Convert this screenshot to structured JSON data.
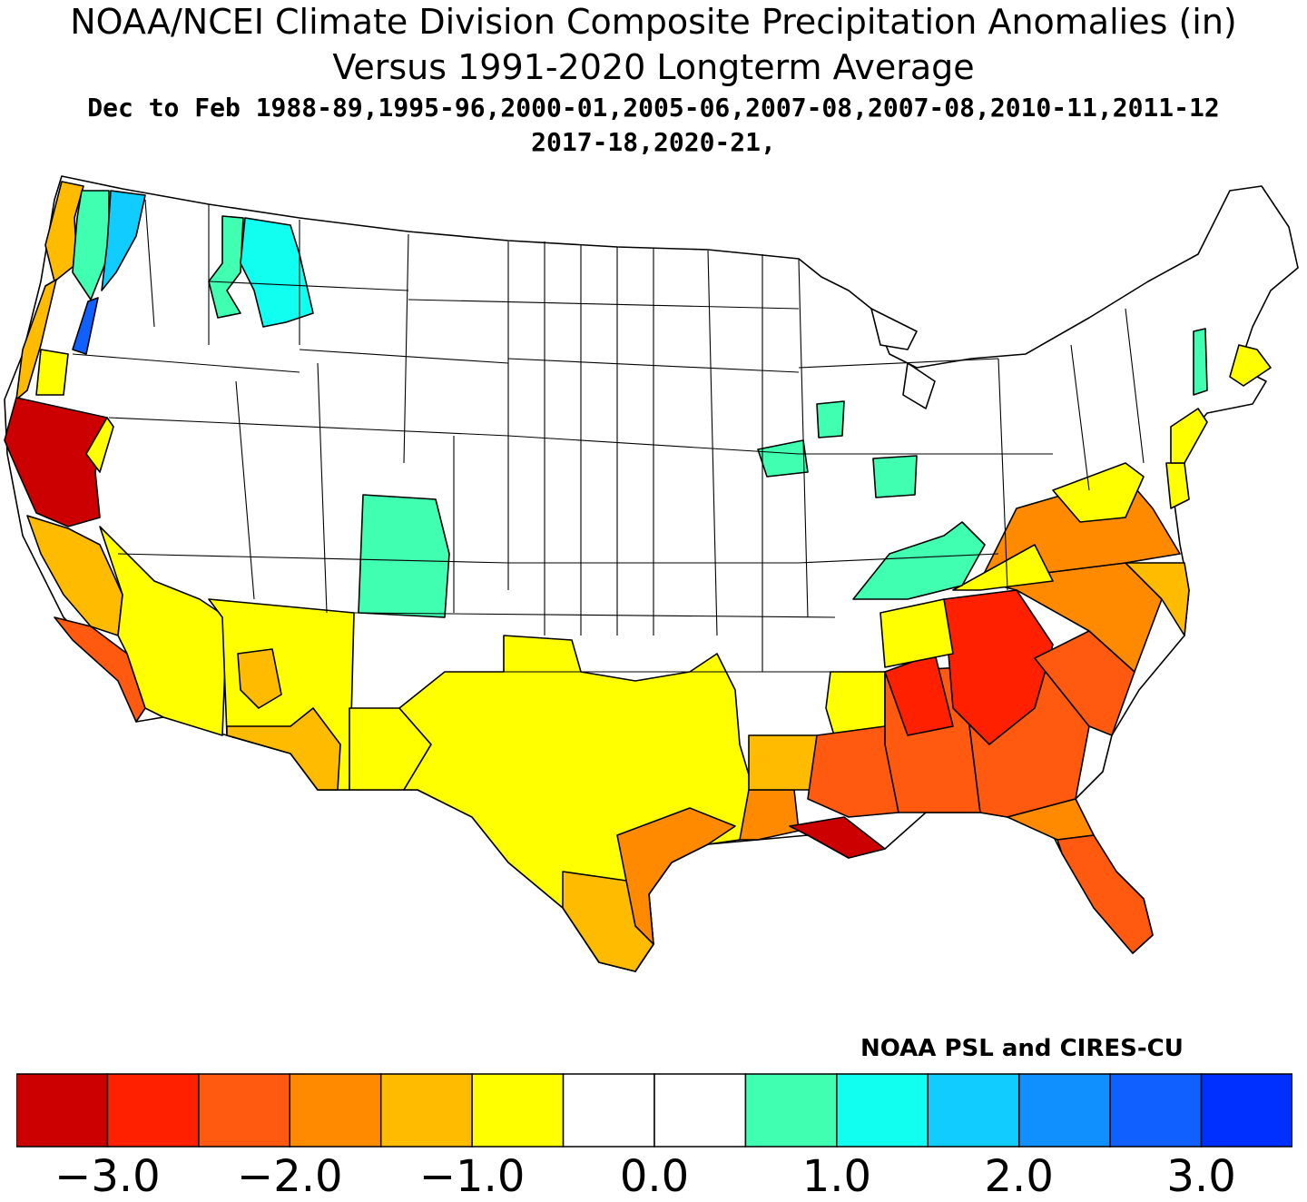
{
  "title": {
    "line1": "NOAA/NCEI Climate Division Composite Precipitation Anomalies (in)",
    "line2": "Versus 1991-2020 Longterm Average",
    "line3": "Dec to Feb  1988-89,1995-96,2000-01,2005-06,2007-08,2007-08,2010-11,2011-12",
    "line4": "2017-18,2020-21,"
  },
  "credit": "NOAA PSL and CIRES-CU",
  "legend": {
    "colors": [
      "#cc0000",
      "#ff2000",
      "#ff5a10",
      "#ff8a00",
      "#ffbb00",
      "#ffff00",
      "#ffffff",
      "#ffffff",
      "#40ffb0",
      "#10fff0",
      "#10ccff",
      "#1090ff",
      "#1060ff",
      "#0030ff"
    ],
    "ticks": [
      {
        "label": "−3.0",
        "value": -3.0
      },
      {
        "label": "−2.0",
        "value": -2.0
      },
      {
        "label": "−1.0",
        "value": -1.0
      },
      {
        "label": "0.0",
        "value": 0.0
      },
      {
        "label": "1.0",
        "value": 1.0
      },
      {
        "label": "2.0",
        "value": 2.0
      },
      {
        "label": "3.0",
        "value": 3.0
      }
    ],
    "min": -3.5,
    "max": 3.5
  },
  "map": {
    "base_color": "#ffffff",
    "border_color": "#000000",
    "regions": [
      {
        "name": "Northern California",
        "anomaly": -3.0,
        "color": "#cc0000"
      },
      {
        "name": "Southeast Louisiana",
        "anomaly": -3.0,
        "color": "#cc0000"
      },
      {
        "name": "Northern Georgia",
        "anomaly": -2.5,
        "color": "#ff2000"
      },
      {
        "name": "Alabama",
        "anomaly": -2.0,
        "color": "#ff5a10"
      },
      {
        "name": "Mississippi Coast",
        "anomaly": -2.0,
        "color": "#ff5a10"
      },
      {
        "name": "South Carolina",
        "anomaly": -2.0,
        "color": "#ff5a10"
      },
      {
        "name": "Florida Peninsula",
        "anomaly": -2.0,
        "color": "#ff5a10"
      },
      {
        "name": "Southern California Coast",
        "anomaly": -2.0,
        "color": "#ff5a10"
      },
      {
        "name": "Upper Texas Coast",
        "anomaly": -2.0,
        "color": "#ff5a10"
      },
      {
        "name": "Southwest Louisiana",
        "anomaly": -2.0,
        "color": "#ff5a10"
      },
      {
        "name": "Piedmont",
        "anomaly": -1.5,
        "color": "#ff8a00"
      },
      {
        "name": "Central California",
        "anomaly": -1.5,
        "color": "#ffbb00"
      },
      {
        "name": "Oregon Coast",
        "anomaly": -1.5,
        "color": "#ffbb00"
      },
      {
        "name": "Southern Arizona",
        "anomaly": -1.5,
        "color": "#ffbb00"
      },
      {
        "name": "South Texas",
        "anomaly": -1.5,
        "color": "#ffbb00"
      },
      {
        "name": "Northern Louisiana",
        "anomaly": -1.5,
        "color": "#ffbb00"
      },
      {
        "name": "North Carolina Coast",
        "anomaly": -1.5,
        "color": "#ffbb00"
      },
      {
        "name": "Texas",
        "anomaly": -1.0,
        "color": "#ffff00"
      },
      {
        "name": "Southwest",
        "anomaly": -1.0,
        "color": "#ffff00"
      },
      {
        "name": "Eastern Oklahoma",
        "anomaly": -1.0,
        "color": "#ffff00"
      },
      {
        "name": "Tennessee",
        "anomaly": -1.0,
        "color": "#ffff00"
      },
      {
        "name": "Mid-Atlantic",
        "anomaly": -1.0,
        "color": "#ffff00"
      },
      {
        "name": "New Jersey",
        "anomaly": -1.0,
        "color": "#ffff00"
      },
      {
        "name": "Massachusetts",
        "anomaly": -1.0,
        "color": "#ffff00"
      },
      {
        "name": "Southern Oregon",
        "anomaly": -1.0,
        "color": "#ffff00"
      },
      {
        "name": "Western Colorado",
        "anomaly": 0.7,
        "color": "#40ffb0"
      },
      {
        "name": "Kentucky",
        "anomaly": 0.7,
        "color": "#40ffb0"
      },
      {
        "name": "Northern Idaho",
        "anomaly": 0.7,
        "color": "#40ffb0"
      },
      {
        "name": "Iowa",
        "anomaly": 0.7,
        "color": "#40ffb0"
      },
      {
        "name": "Northern Illinois",
        "anomaly": 0.7,
        "color": "#40ffb0"
      },
      {
        "name": "Indiana",
        "anomaly": 0.7,
        "color": "#40ffb0"
      },
      {
        "name": "Vermont",
        "anomaly": 0.7,
        "color": "#40ffb0"
      },
      {
        "name": "Western Montana",
        "anomaly": 1.2,
        "color": "#10fff0"
      },
      {
        "name": "Washington Cascades",
        "anomaly": 1.5,
        "color": "#10ccff"
      },
      {
        "name": "Washington Lowlands",
        "anomaly": 2.5,
        "color": "#1060ff"
      }
    ]
  }
}
